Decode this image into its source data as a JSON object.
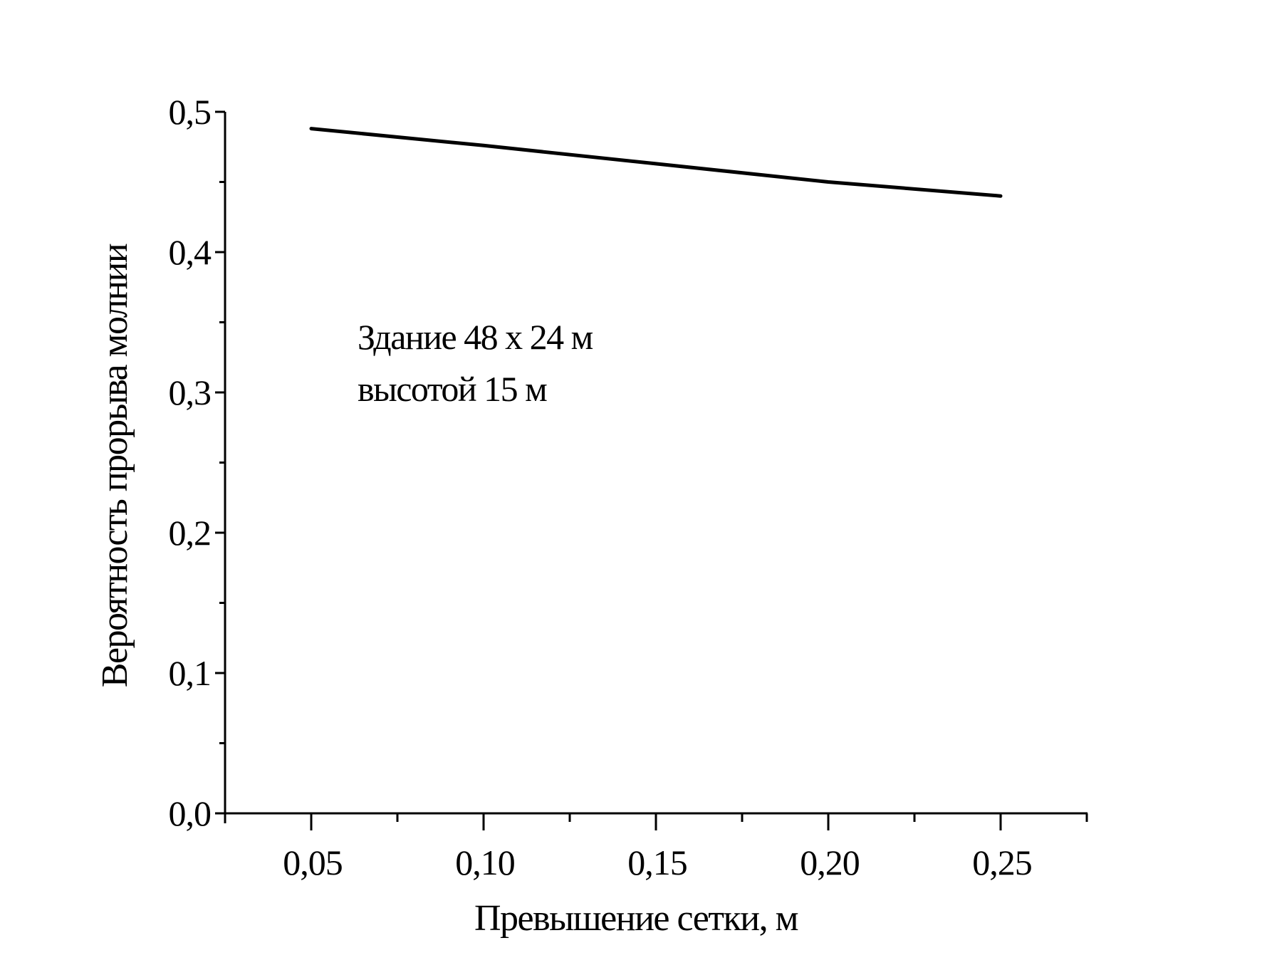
{
  "chart_data": {
    "type": "line",
    "title": "",
    "xlabel": "Превышение сетки,  м",
    "ylabel": "Вероятность прорыва молнии",
    "xlim": [
      0.025,
      0.275
    ],
    "ylim": [
      0.0,
      0.5
    ],
    "x_ticks": [
      0.05,
      0.1,
      0.15,
      0.2,
      0.25
    ],
    "x_tick_labels": [
      "0,05",
      "0,10",
      "0,15",
      "0,20",
      "0,25"
    ],
    "y_ticks": [
      0.0,
      0.1,
      0.2,
      0.3,
      0.4,
      0.5
    ],
    "y_tick_labels": [
      "0,0",
      "0,1",
      "0,2",
      "0,3",
      "0,4",
      "0,5"
    ],
    "grid": false,
    "legend": null,
    "series": [
      {
        "name": "Здание 48 x 24 м высотой 15 м",
        "x": [
          0.05,
          0.1,
          0.15,
          0.2,
          0.25
        ],
        "values": [
          0.488,
          0.476,
          0.463,
          0.45,
          0.44
        ],
        "color": "#000000"
      }
    ],
    "annotations": [
      "Здание 48 x 24 м",
      "высотой 15 м"
    ]
  },
  "labels": {
    "xlabel": "Превышение сетки,  м",
    "ylabel": "Вероятность прорыва молнии",
    "annotation_line1": "Здание 48 x 24 м",
    "annotation_line2": "высотой 15 м",
    "xticks": [
      "0,05",
      "0,10",
      "0,15",
      "0,20",
      "0,25"
    ],
    "yticks": [
      "0,0",
      "0,1",
      "0,2",
      "0,3",
      "0,4",
      "0,5"
    ]
  }
}
